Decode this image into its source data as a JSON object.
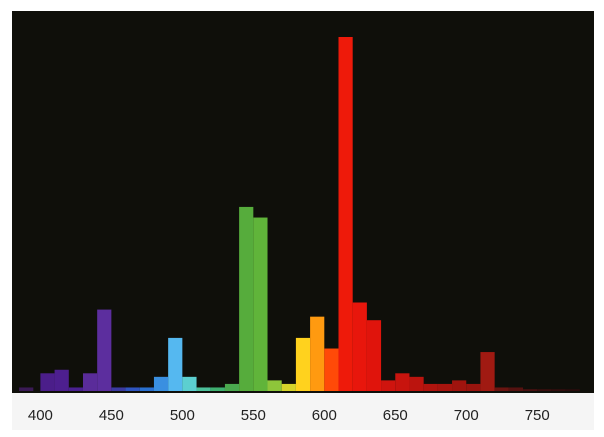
{
  "chart_data": {
    "type": "bar",
    "title": "",
    "xlabel": "",
    "ylabel": "",
    "background": "#0f0f0a",
    "xlim": [
      380,
      790
    ],
    "ylim": [
      0,
      100
    ],
    "grid": false,
    "legend": "none",
    "x_ticks": [
      "400",
      "450",
      "500",
      "550",
      "600",
      "650",
      "700",
      "750"
    ],
    "bar_width_nm": 10,
    "bars": [
      {
        "x": 385,
        "value": 1,
        "color": "#3a1a55"
      },
      {
        "x": 400,
        "value": 5,
        "color": "#4b1e8a"
      },
      {
        "x": 410,
        "value": 6,
        "color": "#4d1f8f"
      },
      {
        "x": 420,
        "value": 1,
        "color": "#4a2090"
      },
      {
        "x": 430,
        "value": 5,
        "color": "#5a2c9a"
      },
      {
        "x": 440,
        "value": 23,
        "color": "#5c2e9e"
      },
      {
        "x": 450,
        "value": 1,
        "color": "#3b3aa0"
      },
      {
        "x": 460,
        "value": 1,
        "color": "#2f55c0"
      },
      {
        "x": 470,
        "value": 1,
        "color": "#2a70d0"
      },
      {
        "x": 480,
        "value": 4,
        "color": "#3a8fe0"
      },
      {
        "x": 490,
        "value": 15,
        "color": "#55b8f0"
      },
      {
        "x": 500,
        "value": 4,
        "color": "#5ccfd0"
      },
      {
        "x": 510,
        "value": 1,
        "color": "#4cc09a"
      },
      {
        "x": 520,
        "value": 1,
        "color": "#3fb070"
      },
      {
        "x": 530,
        "value": 2,
        "color": "#4aa84e"
      },
      {
        "x": 540,
        "value": 52,
        "color": "#56ac3c"
      },
      {
        "x": 550,
        "value": 49,
        "color": "#60b43a"
      },
      {
        "x": 560,
        "value": 3,
        "color": "#8ec53a"
      },
      {
        "x": 570,
        "value": 2,
        "color": "#d6d42a"
      },
      {
        "x": 580,
        "value": 15,
        "color": "#ffd21e"
      },
      {
        "x": 590,
        "value": 21,
        "color": "#ff9a10"
      },
      {
        "x": 600,
        "value": 12,
        "color": "#ff4a08"
      },
      {
        "x": 610,
        "value": 100,
        "color": "#ee1a0a"
      },
      {
        "x": 620,
        "value": 25,
        "color": "#e8160c"
      },
      {
        "x": 630,
        "value": 20,
        "color": "#e0140c"
      },
      {
        "x": 640,
        "value": 3,
        "color": "#cf140e"
      },
      {
        "x": 650,
        "value": 5,
        "color": "#c8140e"
      },
      {
        "x": 660,
        "value": 4,
        "color": "#bb140e"
      },
      {
        "x": 670,
        "value": 2,
        "color": "#b0140e"
      },
      {
        "x": 680,
        "value": 2,
        "color": "#a8140e"
      },
      {
        "x": 690,
        "value": 3,
        "color": "#a0140e"
      },
      {
        "x": 700,
        "value": 2,
        "color": "#98140e"
      },
      {
        "x": 710,
        "value": 11,
        "color": "#a01a12"
      },
      {
        "x": 720,
        "value": 1,
        "color": "#6a1410"
      },
      {
        "x": 730,
        "value": 1,
        "color": "#551210"
      },
      {
        "x": 740,
        "value": 0.5,
        "color": "#4a1010"
      },
      {
        "x": 750,
        "value": 0.5,
        "color": "#3a0e0e"
      },
      {
        "x": 760,
        "value": 0.5,
        "color": "#320d0d"
      },
      {
        "x": 770,
        "value": 0.5,
        "color": "#2a0c0c"
      }
    ]
  }
}
